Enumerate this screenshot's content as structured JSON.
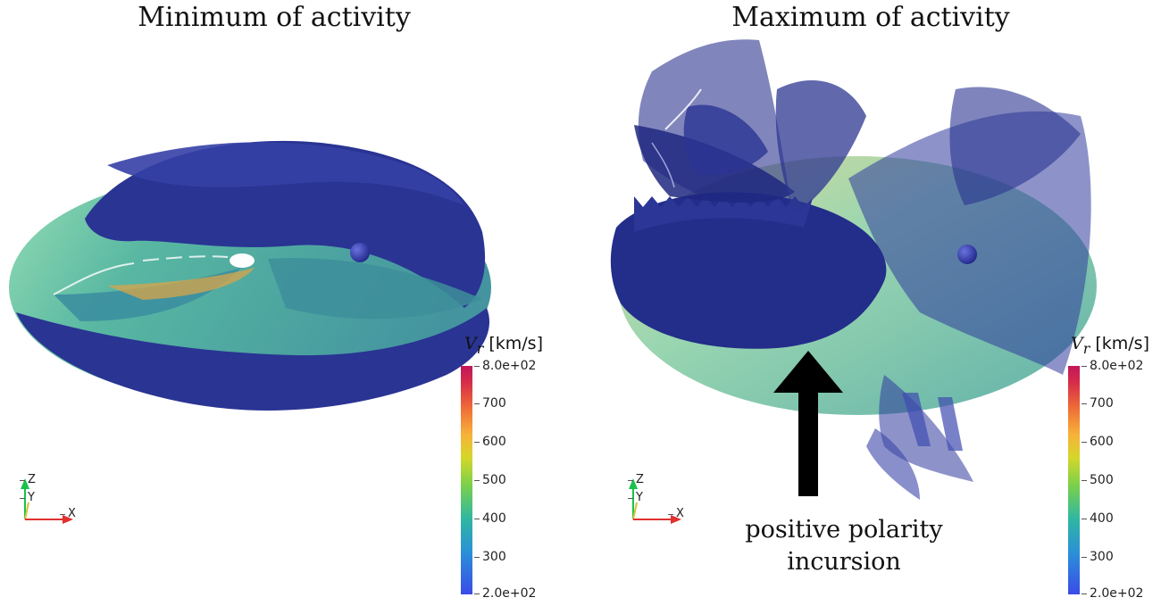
{
  "panels": [
    {
      "title": "Minimum of activity",
      "colorbar": {
        "variable": "V",
        "subscript": "r",
        "unit": "[km/s]",
        "max_label": "8.0e+02",
        "min_label": "2.0e+02",
        "ticks": [
          "700",
          "600",
          "500",
          "400",
          "300"
        ]
      },
      "axes": {
        "z": "Z",
        "y": "Y",
        "x": "X"
      }
    },
    {
      "title": "Maximum of activity",
      "colorbar": {
        "variable": "V",
        "subscript": "r",
        "unit": "[km/s]",
        "max_label": "8.0e+02",
        "min_label": "2.0e+02",
        "ticks": [
          "700",
          "600",
          "500",
          "400",
          "300"
        ]
      },
      "axes": {
        "z": "Z",
        "y": "Y",
        "x": "X"
      },
      "annotation": {
        "line1": "positive polarity",
        "line2": "incursion"
      }
    }
  ],
  "colors": {
    "surface_dark": "#27318f",
    "surface_mid": "#3a45a8",
    "plane_teal": "#3fa39a",
    "plane_green": "#7fd3a8",
    "plane_yellow": "#d9c878",
    "arrow": "#000000"
  }
}
